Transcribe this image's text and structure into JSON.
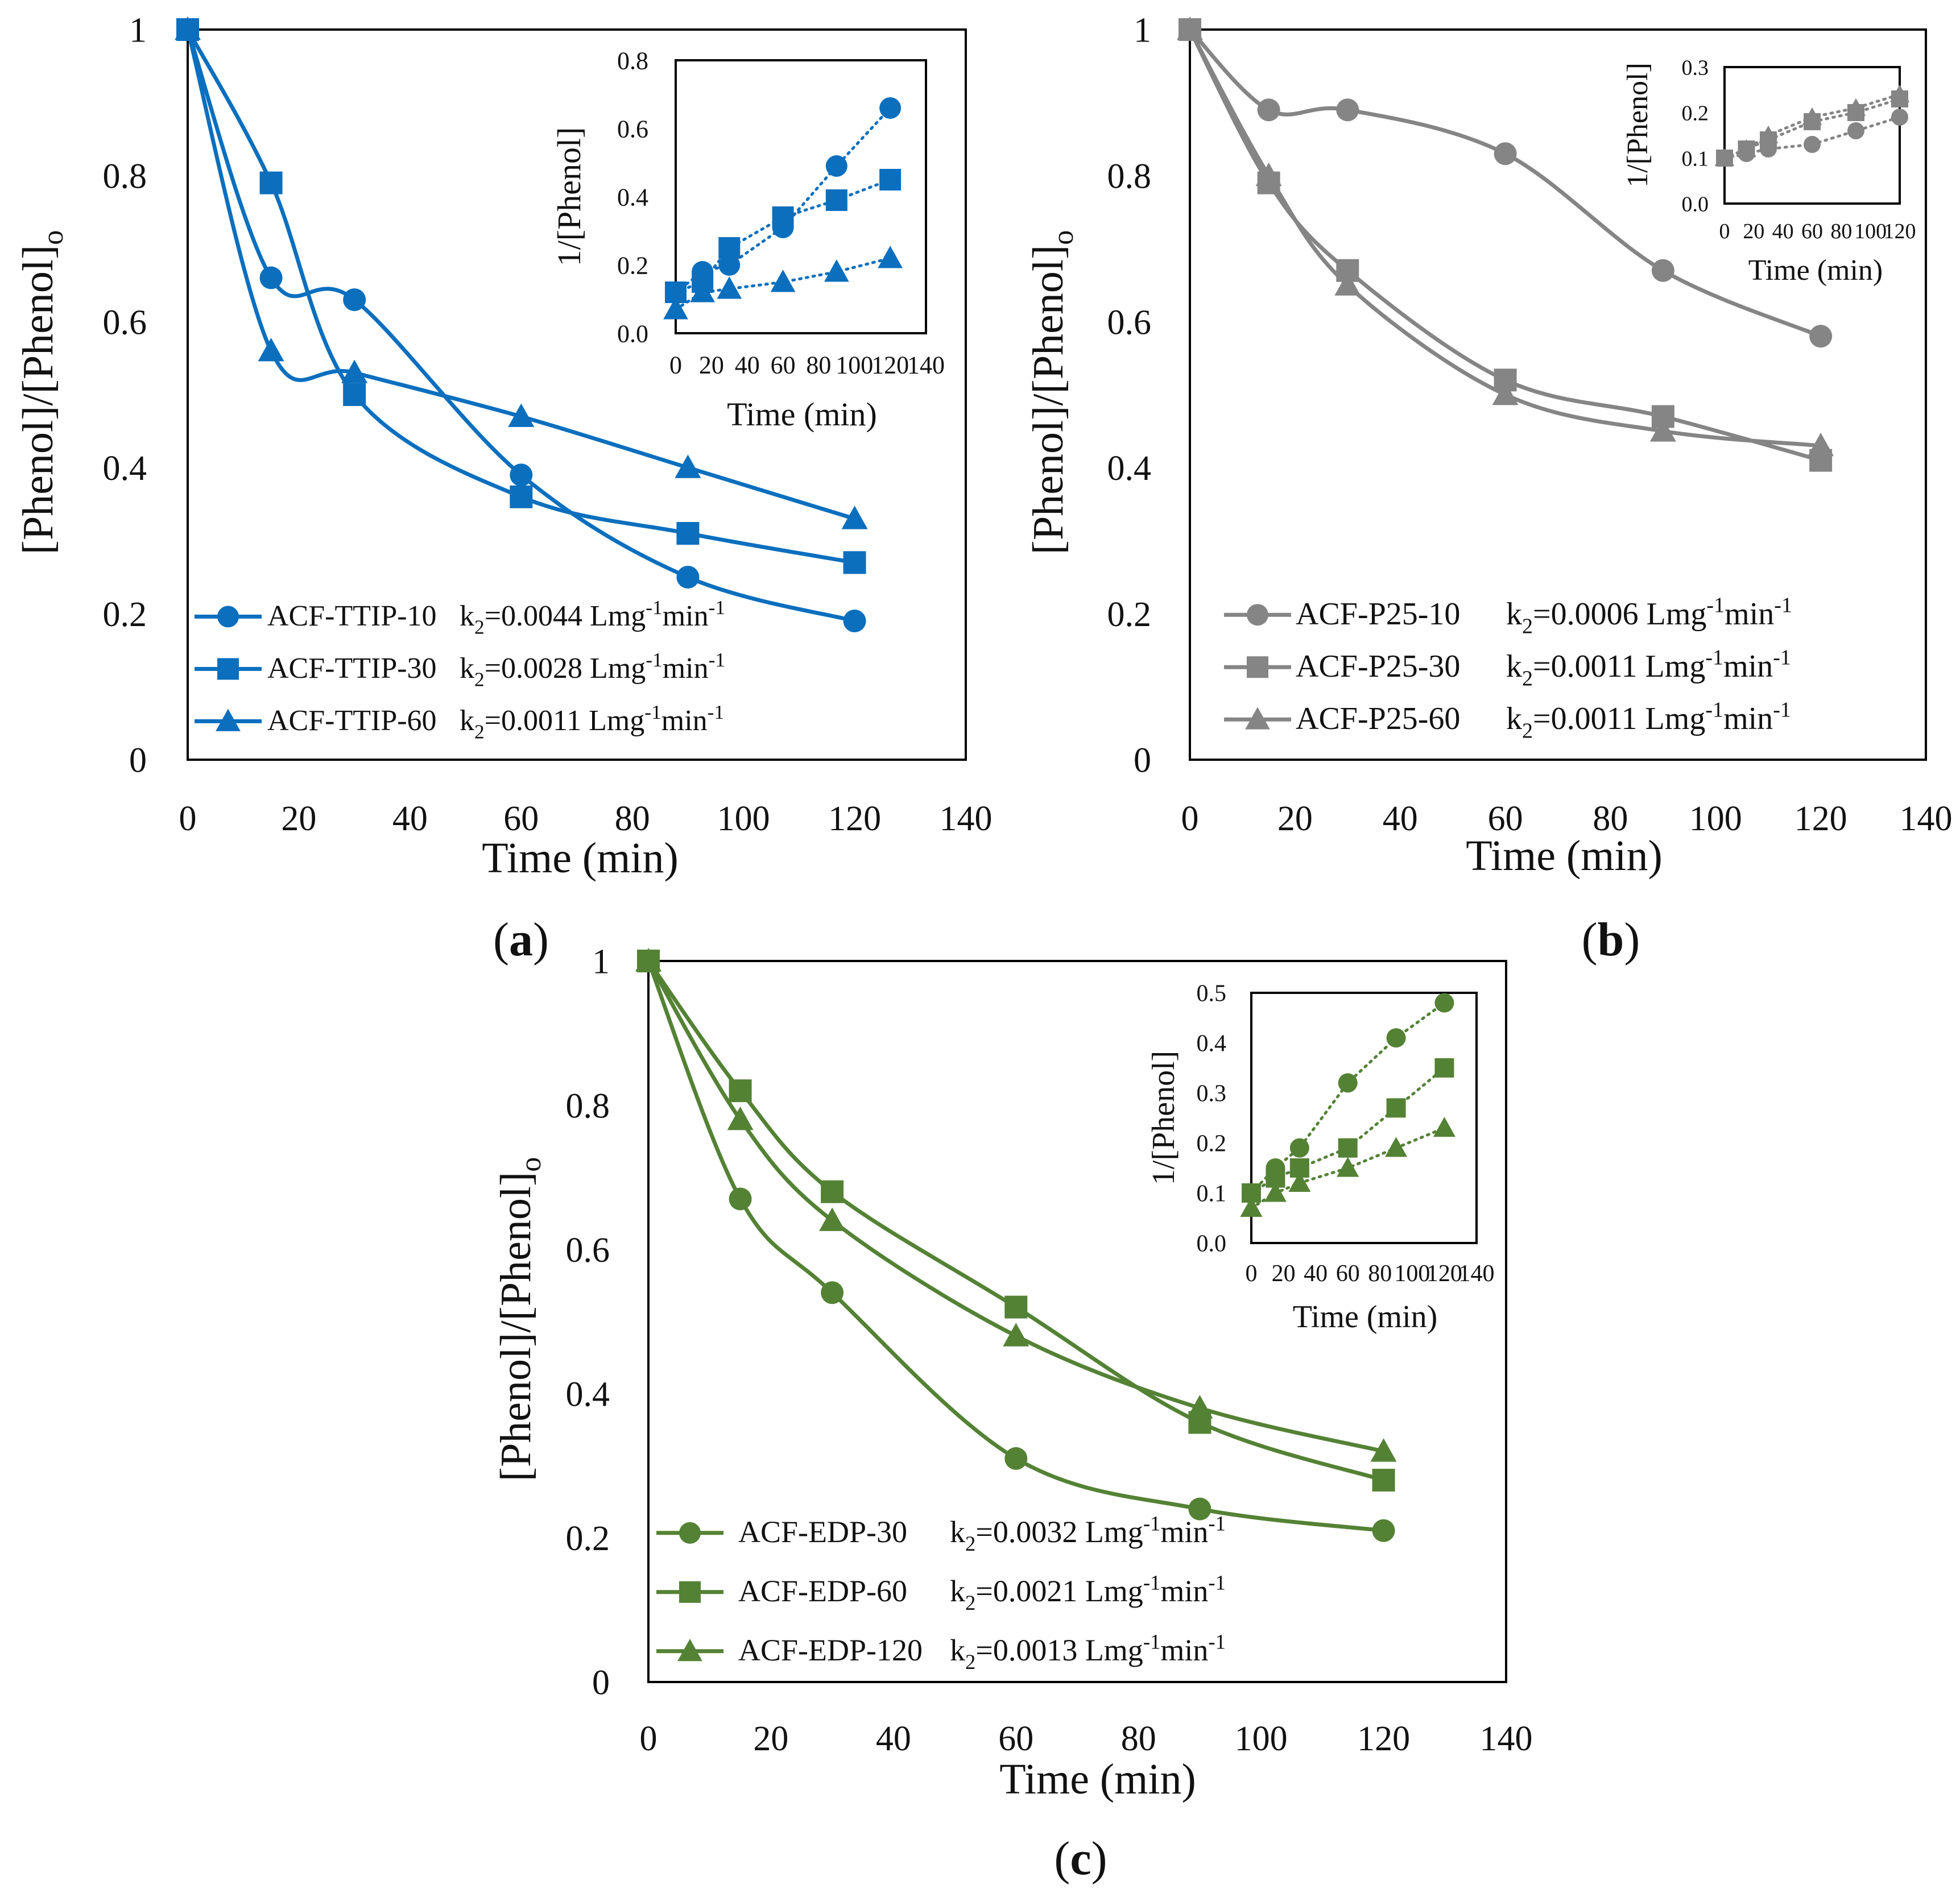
{
  "panels": [
    {
      "id": "a",
      "label": "(a)",
      "color": "#0b6fbe",
      "chart_data": {
        "type": "line",
        "title": "",
        "xlabel": "Time (min)",
        "ylabel": "[Phenol]/[Phenol]o",
        "xlim": [
          0,
          140
        ],
        "ylim": [
          0,
          1
        ],
        "xticks": [
          "0",
          "20",
          "40",
          "60",
          "80",
          "100",
          "120",
          "140"
        ],
        "yticks": [
          "0",
          "0.2",
          "0.4",
          "0.6",
          "0.8",
          "1"
        ],
        "grid": false,
        "legend_position": "bottom-left",
        "series": [
          {
            "name": "ACF-TTIP-10",
            "k_label": "k2=0.0044 Lmg-1min-1",
            "marker": "circle",
            "x": [
              0,
              15,
              30,
              60,
              90,
              120
            ],
            "y": [
              1,
              0.66,
              0.63,
              0.39,
              0.25,
              0.19
            ]
          },
          {
            "name": "ACF-TTIP-30",
            "k_label": "k2=0.0028 Lmg-1min-1",
            "marker": "square",
            "x": [
              0,
              15,
              30,
              60,
              90,
              120
            ],
            "y": [
              1,
              0.79,
              0.5,
              0.36,
              0.31,
              0.27
            ]
          },
          {
            "name": "ACF-TTIP-60",
            "k_label": "k2=0.0011 Lmg-1min-1",
            "marker": "triangle",
            "x": [
              0,
              15,
              30,
              60,
              90,
              120
            ],
            "y": [
              1,
              0.56,
              0.53,
              0.47,
              0.4,
              0.33
            ]
          }
        ],
        "inset": {
          "type": "scatter",
          "xlabel": "Time (min)",
          "ylabel": "1/[Phenol]",
          "xlim": [
            0,
            140
          ],
          "ylim": [
            0,
            0.8
          ],
          "xticks": [
            "0",
            "20",
            "40",
            "60",
            "80",
            "100",
            "120",
            "140"
          ],
          "yticks": [
            "0.0",
            "0.2",
            "0.4",
            "0.6",
            "0.8"
          ],
          "series": [
            {
              "name": "ACF-TTIP-10",
              "marker": "circle",
              "x": [
                0,
                15,
                30,
                60,
                90,
                120
              ],
              "y": [
                0.12,
                0.18,
                0.2,
                0.31,
                0.49,
                0.66
              ]
            },
            {
              "name": "ACF-TTIP-30",
              "marker": "square",
              "x": [
                0,
                15,
                30,
                60,
                90,
                120
              ],
              "y": [
                0.12,
                0.15,
                0.25,
                0.34,
                0.39,
                0.45
              ]
            },
            {
              "name": "ACF-TTIP-60",
              "marker": "triangle",
              "x": [
                0,
                15,
                30,
                60,
                90,
                120
              ],
              "y": [
                0.07,
                0.12,
                0.13,
                0.15,
                0.18,
                0.22
              ]
            }
          ]
        }
      }
    },
    {
      "id": "b",
      "label": "(b)",
      "color": "#858585",
      "chart_data": {
        "type": "line",
        "title": "",
        "xlabel": "Time (min)",
        "ylabel": "[Phenol]/[Phenol]o",
        "xlim": [
          0,
          140
        ],
        "ylim": [
          0,
          1
        ],
        "xticks": [
          "0",
          "20",
          "40",
          "60",
          "80",
          "100",
          "120",
          "140"
        ],
        "yticks": [
          "0",
          "0.2",
          "0.4",
          "0.6",
          "0.8",
          "1"
        ],
        "grid": false,
        "legend_position": "bottom-left",
        "series": [
          {
            "name": "ACF-P25-10",
            "k_label": "k2=0.0006 Lmg-1min-1",
            "marker": "circle",
            "x": [
              0,
              15,
              30,
              60,
              90,
              120
            ],
            "y": [
              1,
              0.89,
              0.89,
              0.83,
              0.67,
              0.58
            ]
          },
          {
            "name": "ACF-P25-30",
            "k_label": "k2=0.0011 Lmg-1min-1",
            "marker": "square",
            "x": [
              0,
              15,
              30,
              60,
              90,
              120
            ],
            "y": [
              1,
              0.79,
              0.67,
              0.52,
              0.47,
              0.41
            ]
          },
          {
            "name": "ACF-P25-60",
            "k_label": "k2=0.0011 Lmg-1min-1",
            "marker": "triangle",
            "x": [
              0,
              15,
              30,
              60,
              90,
              120
            ],
            "y": [
              1,
              0.8,
              0.65,
              0.5,
              0.45,
              0.43
            ]
          }
        ],
        "inset": {
          "type": "scatter",
          "xlabel": "Time (min)",
          "ylabel": "1/[Phenol]",
          "xlim": [
            0,
            120
          ],
          "ylim": [
            0,
            0.3
          ],
          "xticks": [
            "0",
            "20",
            "40",
            "60",
            "80",
            "100",
            "120"
          ],
          "yticks": [
            "0.0",
            "0.1",
            "0.2",
            "0.3"
          ],
          "series": [
            {
              "name": "ACF-P25-10",
              "marker": "circle",
              "x": [
                0,
                15,
                30,
                60,
                90,
                120
              ],
              "y": [
                0.1,
                0.11,
                0.12,
                0.13,
                0.16,
                0.19
              ]
            },
            {
              "name": "ACF-P25-30",
              "marker": "square",
              "x": [
                0,
                15,
                30,
                60,
                90,
                120
              ],
              "y": [
                0.1,
                0.12,
                0.14,
                0.18,
                0.2,
                0.23
              ]
            },
            {
              "name": "ACF-P25-60",
              "marker": "triangle",
              "x": [
                0,
                15,
                30,
                60,
                90,
                120
              ],
              "y": [
                0.1,
                0.12,
                0.15,
                0.19,
                0.21,
                0.24
              ]
            }
          ]
        }
      }
    },
    {
      "id": "c",
      "label": "(c)",
      "color": "#548235",
      "chart_data": {
        "type": "line",
        "title": "",
        "xlabel": "Time (min)",
        "ylabel": "[Phenol]/[Phenol]o",
        "xlim": [
          0,
          140
        ],
        "ylim": [
          0,
          1
        ],
        "xticks": [
          "0",
          "20",
          "40",
          "60",
          "80",
          "100",
          "120",
          "140"
        ],
        "yticks": [
          "0",
          "0.2",
          "0.4",
          "0.6",
          "0.8",
          "1"
        ],
        "grid": false,
        "legend_position": "bottom-left",
        "series": [
          {
            "name": "ACF-EDP-30",
            "k_label": "k2=0.0032 Lmg-1min-1",
            "marker": "circle",
            "x": [
              0,
              15,
              30,
              60,
              90,
              120
            ],
            "y": [
              1,
              0.67,
              0.54,
              0.31,
              0.24,
              0.21
            ]
          },
          {
            "name": "ACF-EDP-60",
            "k_label": "k2=0.0021 Lmg-1min-1",
            "marker": "square",
            "x": [
              0,
              15,
              30,
              60,
              90,
              120
            ],
            "y": [
              1,
              0.82,
              0.68,
              0.52,
              0.36,
              0.28
            ]
          },
          {
            "name": "ACF-EDP-120",
            "k_label": "k2=0.0013 Lmg-1min-1",
            "marker": "triangle",
            "x": [
              0,
              15,
              30,
              60,
              90,
              120
            ],
            "y": [
              1,
              0.78,
              0.64,
              0.48,
              0.38,
              0.32
            ]
          }
        ],
        "inset": {
          "type": "scatter",
          "xlabel": "Time (min)",
          "ylabel": "1/[Phenol]",
          "xlim": [
            0,
            140
          ],
          "ylim": [
            0,
            0.5
          ],
          "xticks": [
            "0",
            "20",
            "40",
            "60",
            "80",
            "100",
            "120",
            "140"
          ],
          "yticks": [
            "0.0",
            "0.1",
            "0.2",
            "0.3",
            "0.4",
            "0.5"
          ],
          "series": [
            {
              "name": "ACF-EDP-30",
              "marker": "circle",
              "x": [
                0,
                15,
                30,
                60,
                90,
                120
              ],
              "y": [
                0.1,
                0.15,
                0.19,
                0.32,
                0.41,
                0.48
              ]
            },
            {
              "name": "ACF-EDP-60",
              "marker": "square",
              "x": [
                0,
                15,
                30,
                60,
                90,
                120
              ],
              "y": [
                0.1,
                0.13,
                0.15,
                0.19,
                0.27,
                0.35
              ]
            },
            {
              "name": "ACF-EDP-120",
              "marker": "triangle",
              "x": [
                0,
                15,
                30,
                60,
                90,
                120
              ],
              "y": [
                0.07,
                0.1,
                0.12,
                0.15,
                0.19,
                0.23
              ]
            }
          ]
        }
      }
    }
  ]
}
